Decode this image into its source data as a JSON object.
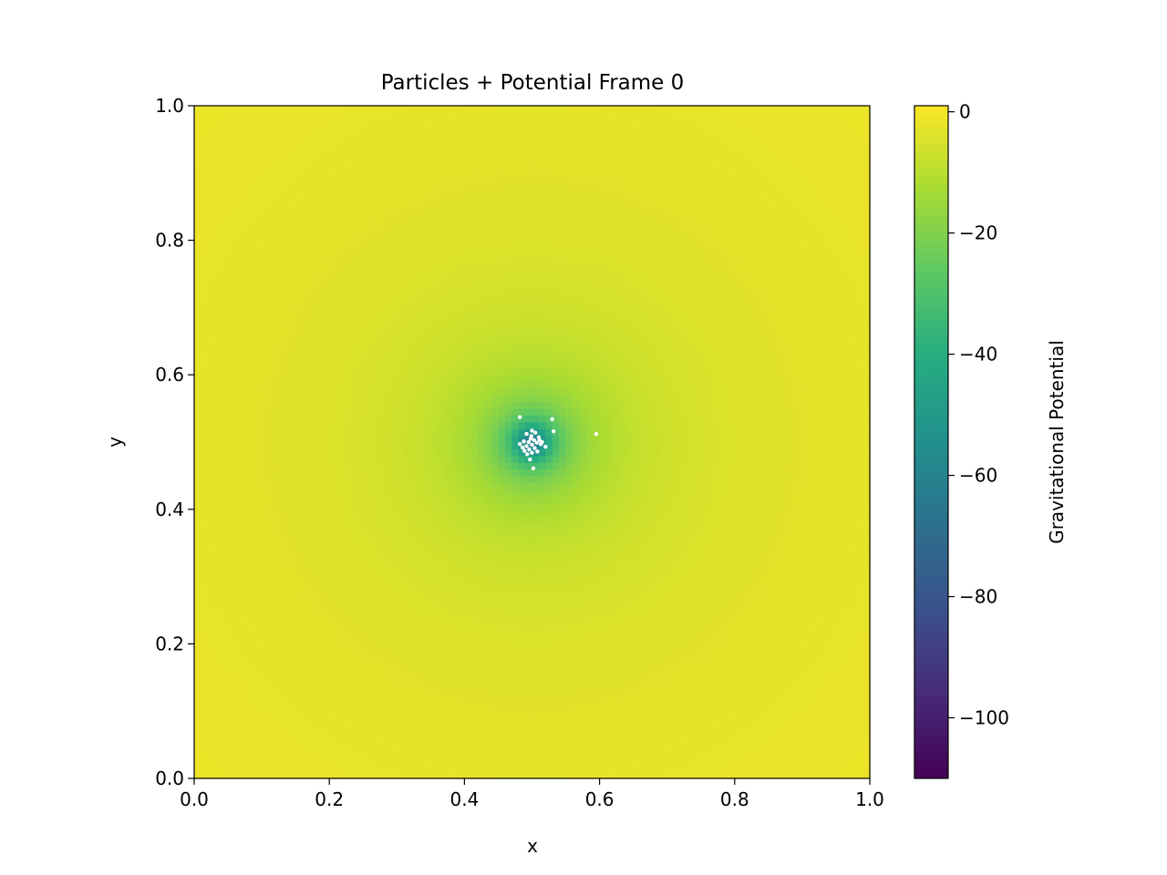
{
  "chart_data": {
    "type": "heatmap",
    "title": "Particles + Potential Frame 0",
    "xlabel": "x",
    "ylabel": "y",
    "xlim": [
      0.0,
      1.0
    ],
    "ylim": [
      0.0,
      1.0
    ],
    "x_ticks": [
      {
        "value": 0.0,
        "label": "0.0"
      },
      {
        "value": 0.2,
        "label": "0.2"
      },
      {
        "value": 0.4,
        "label": "0.4"
      },
      {
        "value": 0.6,
        "label": "0.6"
      },
      {
        "value": 0.8,
        "label": "0.8"
      },
      {
        "value": 1.0,
        "label": "1.0"
      }
    ],
    "y_ticks": [
      {
        "value": 0.0,
        "label": "0.0"
      },
      {
        "value": 0.2,
        "label": "0.2"
      },
      {
        "value": 0.4,
        "label": "0.4"
      },
      {
        "value": 0.6,
        "label": "0.6"
      },
      {
        "value": 0.8,
        "label": "0.8"
      },
      {
        "value": 1.0,
        "label": "1.0"
      }
    ],
    "grid": false,
    "colormap": "viridis",
    "colorbar": {
      "label": "Gravitational Potential",
      "range": [
        -110,
        1
      ],
      "ticks": [
        {
          "value": 0,
          "label": "0"
        },
        {
          "value": -20,
          "label": "−20"
        },
        {
          "value": -40,
          "label": "−40"
        },
        {
          "value": -60,
          "label": "−60"
        },
        {
          "value": -80,
          "label": "−80"
        },
        {
          "value": -100,
          "label": "−100"
        }
      ]
    },
    "potential_field": {
      "center": [
        0.5,
        0.5
      ],
      "grid_resolution": 100,
      "min_value": -65,
      "max_value": 0,
      "core_radius": 0.02
    },
    "particles": {
      "color": "#ffffff",
      "points": [
        [
          0.482,
          0.537
        ],
        [
          0.53,
          0.534
        ],
        [
          0.532,
          0.516
        ],
        [
          0.595,
          0.512
        ],
        [
          0.5,
          0.517
        ],
        [
          0.505,
          0.514
        ],
        [
          0.492,
          0.512
        ],
        [
          0.51,
          0.507
        ],
        [
          0.498,
          0.505
        ],
        [
          0.503,
          0.503
        ],
        [
          0.488,
          0.501
        ],
        [
          0.495,
          0.5
        ],
        [
          0.507,
          0.499
        ],
        [
          0.513,
          0.497
        ],
        [
          0.482,
          0.497
        ],
        [
          0.5,
          0.496
        ],
        [
          0.492,
          0.494
        ],
        [
          0.52,
          0.493
        ],
        [
          0.504,
          0.491
        ],
        [
          0.496,
          0.489
        ],
        [
          0.489,
          0.487
        ],
        [
          0.508,
          0.486
        ],
        [
          0.5,
          0.484
        ],
        [
          0.493,
          0.482
        ],
        [
          0.497,
          0.474
        ],
        [
          0.502,
          0.461
        ],
        [
          0.486,
          0.492
        ],
        [
          0.511,
          0.503
        ],
        [
          0.499,
          0.509
        ],
        [
          0.515,
          0.5
        ]
      ]
    }
  }
}
